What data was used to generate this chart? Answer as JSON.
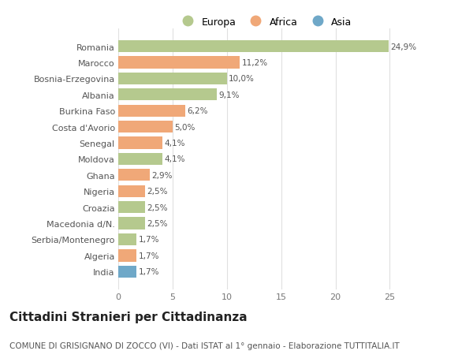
{
  "categories": [
    "India",
    "Algeria",
    "Serbia/Montenegro",
    "Macedonia d/N.",
    "Croazia",
    "Nigeria",
    "Ghana",
    "Moldova",
    "Senegal",
    "Costa d'Avorio",
    "Burkina Faso",
    "Albania",
    "Bosnia-Erzegovina",
    "Marocco",
    "Romania"
  ],
  "values": [
    1.7,
    1.7,
    1.7,
    2.5,
    2.5,
    2.5,
    2.9,
    4.1,
    4.1,
    5.0,
    6.2,
    9.1,
    10.0,
    11.2,
    24.9
  ],
  "labels": [
    "1,7%",
    "1,7%",
    "1,7%",
    "2,5%",
    "2,5%",
    "2,5%",
    "2,9%",
    "4,1%",
    "4,1%",
    "5,0%",
    "6,2%",
    "9,1%",
    "10,0%",
    "11,2%",
    "24,9%"
  ],
  "continent": [
    "Asia",
    "Africa",
    "Europa",
    "Europa",
    "Europa",
    "Africa",
    "Africa",
    "Europa",
    "Africa",
    "Africa",
    "Africa",
    "Europa",
    "Europa",
    "Africa",
    "Europa"
  ],
  "colors": {
    "Europa": "#b5c98e",
    "Africa": "#f0a878",
    "Asia": "#6fa8c8"
  },
  "title": "Cittadini Stranieri per Cittadinanza",
  "subtitle": "COMUNE DI GRISIGNANO DI ZOCCO (VI) - Dati ISTAT al 1° gennaio - Elaborazione TUTTITALIA.IT",
  "xlim": [
    0,
    27
  ],
  "xticks": [
    0,
    5,
    10,
    15,
    20,
    25
  ],
  "background_color": "#ffffff",
  "grid_color": "#e0e0e0",
  "bar_height": 0.75,
  "title_fontsize": 11,
  "subtitle_fontsize": 7.5,
  "label_fontsize": 7.5,
  "tick_fontsize": 8,
  "legend_fontsize": 9
}
